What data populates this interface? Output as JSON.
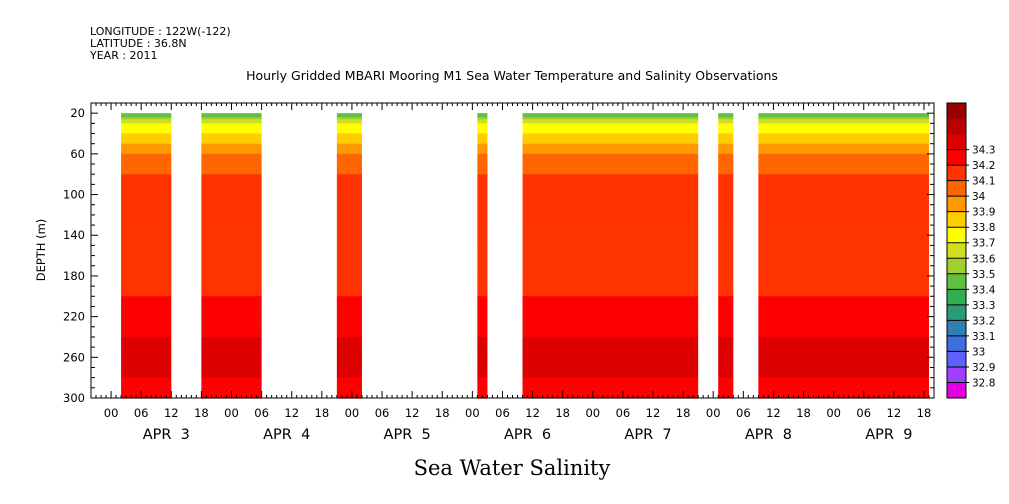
{
  "header": {
    "longitude": "LONGITUDE : 122W(-122)",
    "latitude": "LATITUDE : 36.8N",
    "year": "YEAR : 2011"
  },
  "chart_data": {
    "type": "heatmap",
    "title": "Hourly Gridded MBARI Mooring M1 Sea Water Temperature and Salinity Observations",
    "bottom_label": "Sea Water Salinity",
    "ylabel": "DEPTH (m)",
    "ylim": [
      300,
      10
    ],
    "y_inverted": true,
    "y_ticks": [
      20,
      60,
      100,
      140,
      180,
      220,
      260,
      300
    ],
    "x_hour_ticks": [
      "00",
      "06",
      "12",
      "18",
      "00",
      "06",
      "12",
      "18",
      "00",
      "06",
      "12",
      "18",
      "00",
      "06",
      "12",
      "18",
      "00",
      "06",
      "12",
      "18",
      "00",
      "06",
      "12",
      "18",
      "00",
      "06",
      "12",
      "18"
    ],
    "x_day_labels": [
      "APR  3",
      "APR  4",
      "APR  5",
      "APR  6",
      "APR  7",
      "APR  8",
      "APR  9"
    ],
    "x_units": "hours since 2011-04-03 00:00",
    "xlim": [
      -4,
      164
    ],
    "colorbar": {
      "levels": [
        32.8,
        32.9,
        33,
        33.1,
        33.2,
        33.3,
        33.4,
        33.5,
        33.6,
        33.7,
        33.8,
        33.9,
        34,
        34.1,
        34.2,
        34.3
      ],
      "labels": [
        "32.8",
        "32.9",
        "33",
        "33.1",
        "33.2",
        "33.3",
        "33.4",
        "33.5",
        "33.6",
        "33.7",
        "33.8",
        "33.9",
        "34",
        "34.1",
        "34.2",
        "34.3"
      ],
      "colors": [
        "#e000e0",
        "#a040ff",
        "#6060ff",
        "#3f6fdf",
        "#2f7fb0",
        "#2a9a7a",
        "#2fb050",
        "#60c040",
        "#a0d030",
        "#d0e020",
        "#ffff00",
        "#ffcc00",
        "#ff9900",
        "#ff6600",
        "#ff3300",
        "#ff0000",
        "#dd0000",
        "#bb0000",
        "#990000"
      ],
      "position": "right"
    },
    "data_blocks_hours": [
      {
        "start": 2,
        "end": 12
      },
      {
        "start": 18,
        "end": 30
      },
      {
        "start": 45,
        "end": 50
      },
      {
        "start": 73,
        "end": 75
      },
      {
        "start": 82,
        "end": 117
      },
      {
        "start": 121,
        "end": 124
      },
      {
        "start": 129,
        "end": 163
      }
    ],
    "profile_depth_m": [
      20,
      30,
      40,
      50,
      60,
      70,
      80,
      100,
      120,
      140,
      160,
      180,
      200,
      220,
      240,
      260,
      280,
      300
    ],
    "profile_salinity": [
      33.4,
      33.7,
      33.8,
      33.9,
      34.0,
      34.05,
      34.1,
      34.12,
      34.15,
      34.2,
      34.2,
      34.2,
      34.2,
      34.25,
      34.3,
      34.35,
      34.3,
      34.25
    ]
  }
}
